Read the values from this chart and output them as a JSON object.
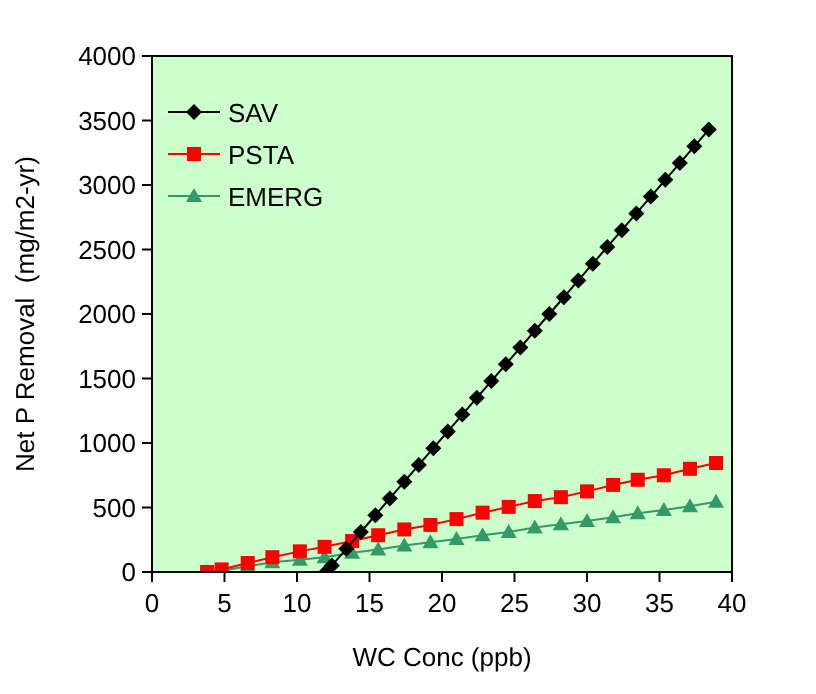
{
  "chart_data": {
    "type": "line",
    "xlabel": "WC Conc (ppb)",
    "ylabel": "Net P Removal  (mg/m2-yr)",
    "xlim": [
      0,
      40
    ],
    "xticks": [
      0,
      5,
      10,
      15,
      20,
      25,
      30,
      35,
      40
    ],
    "ylim": [
      0,
      4000
    ],
    "yticks": [
      0,
      500,
      1000,
      1500,
      2000,
      2500,
      3000,
      3500,
      4000
    ],
    "grid": false,
    "legend": "top left",
    "series": [
      {
        "name": "SAV",
        "color": "#000000",
        "marker": "diamond",
        "x": [
          12.0,
          12.4,
          13.4,
          14.4,
          15.4,
          16.4,
          17.4,
          18.4,
          19.4,
          20.4,
          21.4,
          22.4,
          23.4,
          24.4,
          25.4,
          26.4,
          27.4,
          28.4,
          29.4,
          30.4,
          31.4,
          32.4,
          33.4,
          34.4,
          35.4,
          36.4,
          37.4,
          38.4
        ],
        "values": [
          0,
          50,
          180,
          310,
          440,
          570,
          700,
          830,
          960,
          1090,
          1220,
          1350,
          1480,
          1610,
          1740,
          1870,
          2000,
          2130,
          2260,
          2390,
          2520,
          2650,
          2780,
          2910,
          3040,
          3170,
          3300,
          3430
        ]
      },
      {
        "name": "PSTA",
        "color": "#ff0000",
        "marker": "square",
        "x": [
          3.8,
          4.8,
          6.6,
          8.3,
          10.2,
          11.9,
          13.8,
          15.6,
          17.4,
          19.2,
          21.0,
          22.8,
          24.6,
          26.4,
          28.2,
          30.0,
          31.8,
          33.5,
          35.3,
          37.1,
          38.9
        ],
        "values": [
          0,
          20,
          70,
          115,
          160,
          195,
          240,
          285,
          330,
          365,
          410,
          460,
          505,
          550,
          580,
          625,
          675,
          715,
          750,
          800,
          845
        ]
      },
      {
        "name": "EMERG",
        "color": "#339966",
        "marker": "triangle",
        "x": [
          3.8,
          4.8,
          6.6,
          8.3,
          10.2,
          11.9,
          13.8,
          15.6,
          17.4,
          19.2,
          21.0,
          22.8,
          24.6,
          26.4,
          28.2,
          30.0,
          31.8,
          33.5,
          35.3,
          37.1,
          38.9
        ],
        "values": [
          0,
          10,
          45,
          75,
          95,
          115,
          150,
          175,
          205,
          230,
          255,
          285,
          310,
          345,
          370,
          395,
          425,
          455,
          480,
          510,
          545
        ]
      }
    ]
  }
}
